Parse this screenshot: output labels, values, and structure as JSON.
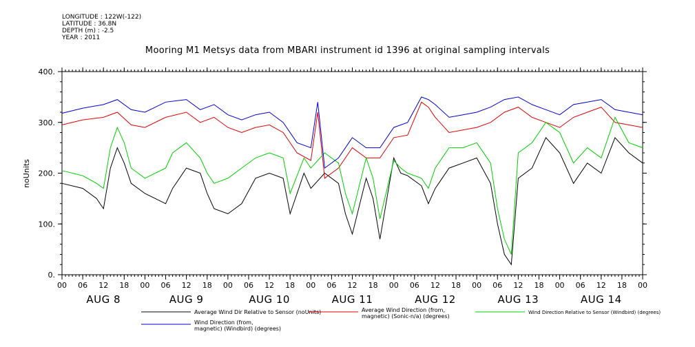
{
  "meta": {
    "longitude": "LONGITUDE : 122W(-122)",
    "latitude": "LATITUDE : 36.8N",
    "depth": "DEPTH (m) : -2.5",
    "year": "YEAR : 2011"
  },
  "chart_data": {
    "type": "line",
    "title": "Mooring M1 Metsys data from MBARI instrument id 1396 at original sampling intervals",
    "ylabel": "noUnits",
    "xlabel": "",
    "ylim": [
      0,
      400
    ],
    "yticks": [
      "0.",
      "100.",
      "200.",
      "300.",
      "400."
    ],
    "xlim_hours": [
      0,
      168
    ],
    "hour_ticks": [
      "00",
      "06",
      "12",
      "18",
      "00",
      "06",
      "12",
      "18",
      "00",
      "06",
      "12",
      "18",
      "00",
      "06",
      "12",
      "18",
      "00",
      "06",
      "12",
      "18",
      "00",
      "06",
      "12",
      "18",
      "00",
      "06",
      "12",
      "18",
      "00"
    ],
    "day_labels": [
      "AUG  8",
      "AUG  9",
      "AUG 10",
      "AUG 11",
      "AUG 12",
      "AUG 13",
      "AUG 14"
    ],
    "grid": false,
    "legend_position": "bottom",
    "series": [
      {
        "name": "Average Wind Dir Relative to Sensor (noUnits)",
        "color": "#000000",
        "x": [
          0,
          6,
          10,
          12,
          14,
          16,
          18,
          20,
          24,
          30,
          32,
          36,
          40,
          42,
          44,
          48,
          52,
          56,
          60,
          64,
          66,
          70,
          72,
          76,
          80,
          82,
          84,
          88,
          90,
          92,
          96,
          98,
          100,
          104,
          106,
          108,
          112,
          116,
          120,
          124,
          126,
          128,
          130,
          132,
          136,
          140,
          144,
          148,
          152,
          156,
          160,
          164,
          168
        ],
        "values": [
          180,
          170,
          150,
          130,
          210,
          250,
          220,
          180,
          160,
          140,
          170,
          210,
          200,
          160,
          130,
          120,
          140,
          190,
          200,
          190,
          120,
          200,
          170,
          200,
          180,
          120,
          80,
          190,
          150,
          70,
          230,
          200,
          195,
          175,
          140,
          170,
          210,
          220,
          230,
          180,
          100,
          40,
          20,
          190,
          210,
          270,
          240,
          180,
          220,
          200,
          270,
          240,
          220
        ]
      },
      {
        "name": "Average Wind Direction (from, magnetic) (Sonic-n/a) (degrees)",
        "color": "#e00000",
        "x": [
          0,
          6,
          12,
          16,
          20,
          24,
          30,
          36,
          40,
          44,
          48,
          52,
          56,
          60,
          64,
          68,
          72,
          74,
          76,
          80,
          84,
          88,
          92,
          96,
          100,
          104,
          106,
          108,
          112,
          116,
          120,
          124,
          128,
          132,
          136,
          140,
          144,
          148,
          152,
          156,
          160,
          164,
          168
        ],
        "values": [
          295,
          305,
          310,
          320,
          295,
          290,
          310,
          320,
          300,
          310,
          290,
          280,
          290,
          295,
          280,
          240,
          225,
          320,
          190,
          210,
          250,
          230,
          230,
          270,
          275,
          340,
          330,
          310,
          280,
          285,
          290,
          300,
          320,
          330,
          310,
          300,
          290,
          310,
          320,
          330,
          300,
          295,
          290
        ]
      },
      {
        "name": "Wind Direction Relative to Sensor (Windbird) (degrees)",
        "color": "#00d000",
        "x": [
          0,
          6,
          10,
          12,
          14,
          16,
          18,
          20,
          24,
          30,
          32,
          36,
          40,
          42,
          44,
          48,
          52,
          56,
          60,
          64,
          66,
          70,
          72,
          76,
          80,
          82,
          84,
          88,
          90,
          92,
          96,
          98,
          100,
          104,
          106,
          108,
          112,
          116,
          120,
          124,
          126,
          128,
          130,
          132,
          136,
          140,
          144,
          148,
          152,
          156,
          160,
          164,
          168
        ],
        "values": [
          205,
          195,
          180,
          170,
          250,
          290,
          260,
          210,
          190,
          210,
          240,
          260,
          230,
          200,
          180,
          190,
          210,
          230,
          240,
          230,
          160,
          230,
          210,
          240,
          220,
          160,
          120,
          230,
          190,
          110,
          225,
          210,
          200,
          190,
          170,
          210,
          250,
          250,
          260,
          220,
          130,
          70,
          40,
          240,
          260,
          300,
          280,
          220,
          250,
          230,
          310,
          260,
          250
        ]
      },
      {
        "name": "Wind Direction (from, magnetic) (Windbird) (degrees)",
        "color": "#0000d0",
        "x": [
          0,
          6,
          12,
          16,
          20,
          24,
          30,
          36,
          40,
          44,
          48,
          52,
          56,
          60,
          64,
          68,
          72,
          74,
          76,
          80,
          84,
          88,
          92,
          96,
          100,
          104,
          106,
          108,
          112,
          116,
          120,
          124,
          128,
          132,
          136,
          140,
          144,
          148,
          152,
          156,
          160,
          164,
          168
        ],
        "values": [
          318,
          328,
          335,
          345,
          325,
          320,
          340,
          345,
          325,
          335,
          315,
          305,
          315,
          320,
          300,
          260,
          250,
          340,
          210,
          230,
          270,
          250,
          250,
          290,
          300,
          350,
          345,
          335,
          310,
          315,
          320,
          330,
          345,
          350,
          335,
          325,
          315,
          335,
          340,
          345,
          325,
          320,
          315
        ]
      }
    ]
  },
  "legend": {
    "black": "Average Wind Dir Relative to Sensor (noUnits)",
    "red_l1": "Average Wind Direction (from,",
    "red_l2": "magnetic) (Sonic-n/a) (degrees)",
    "green": "Wind Direction Relative to Sensor (Windbird) (degrees)",
    "blue_l1": "Wind Direction (from,",
    "blue_l2": "magnetic) (Windbird) (degrees)"
  },
  "colors": {
    "axis": "#000000"
  }
}
